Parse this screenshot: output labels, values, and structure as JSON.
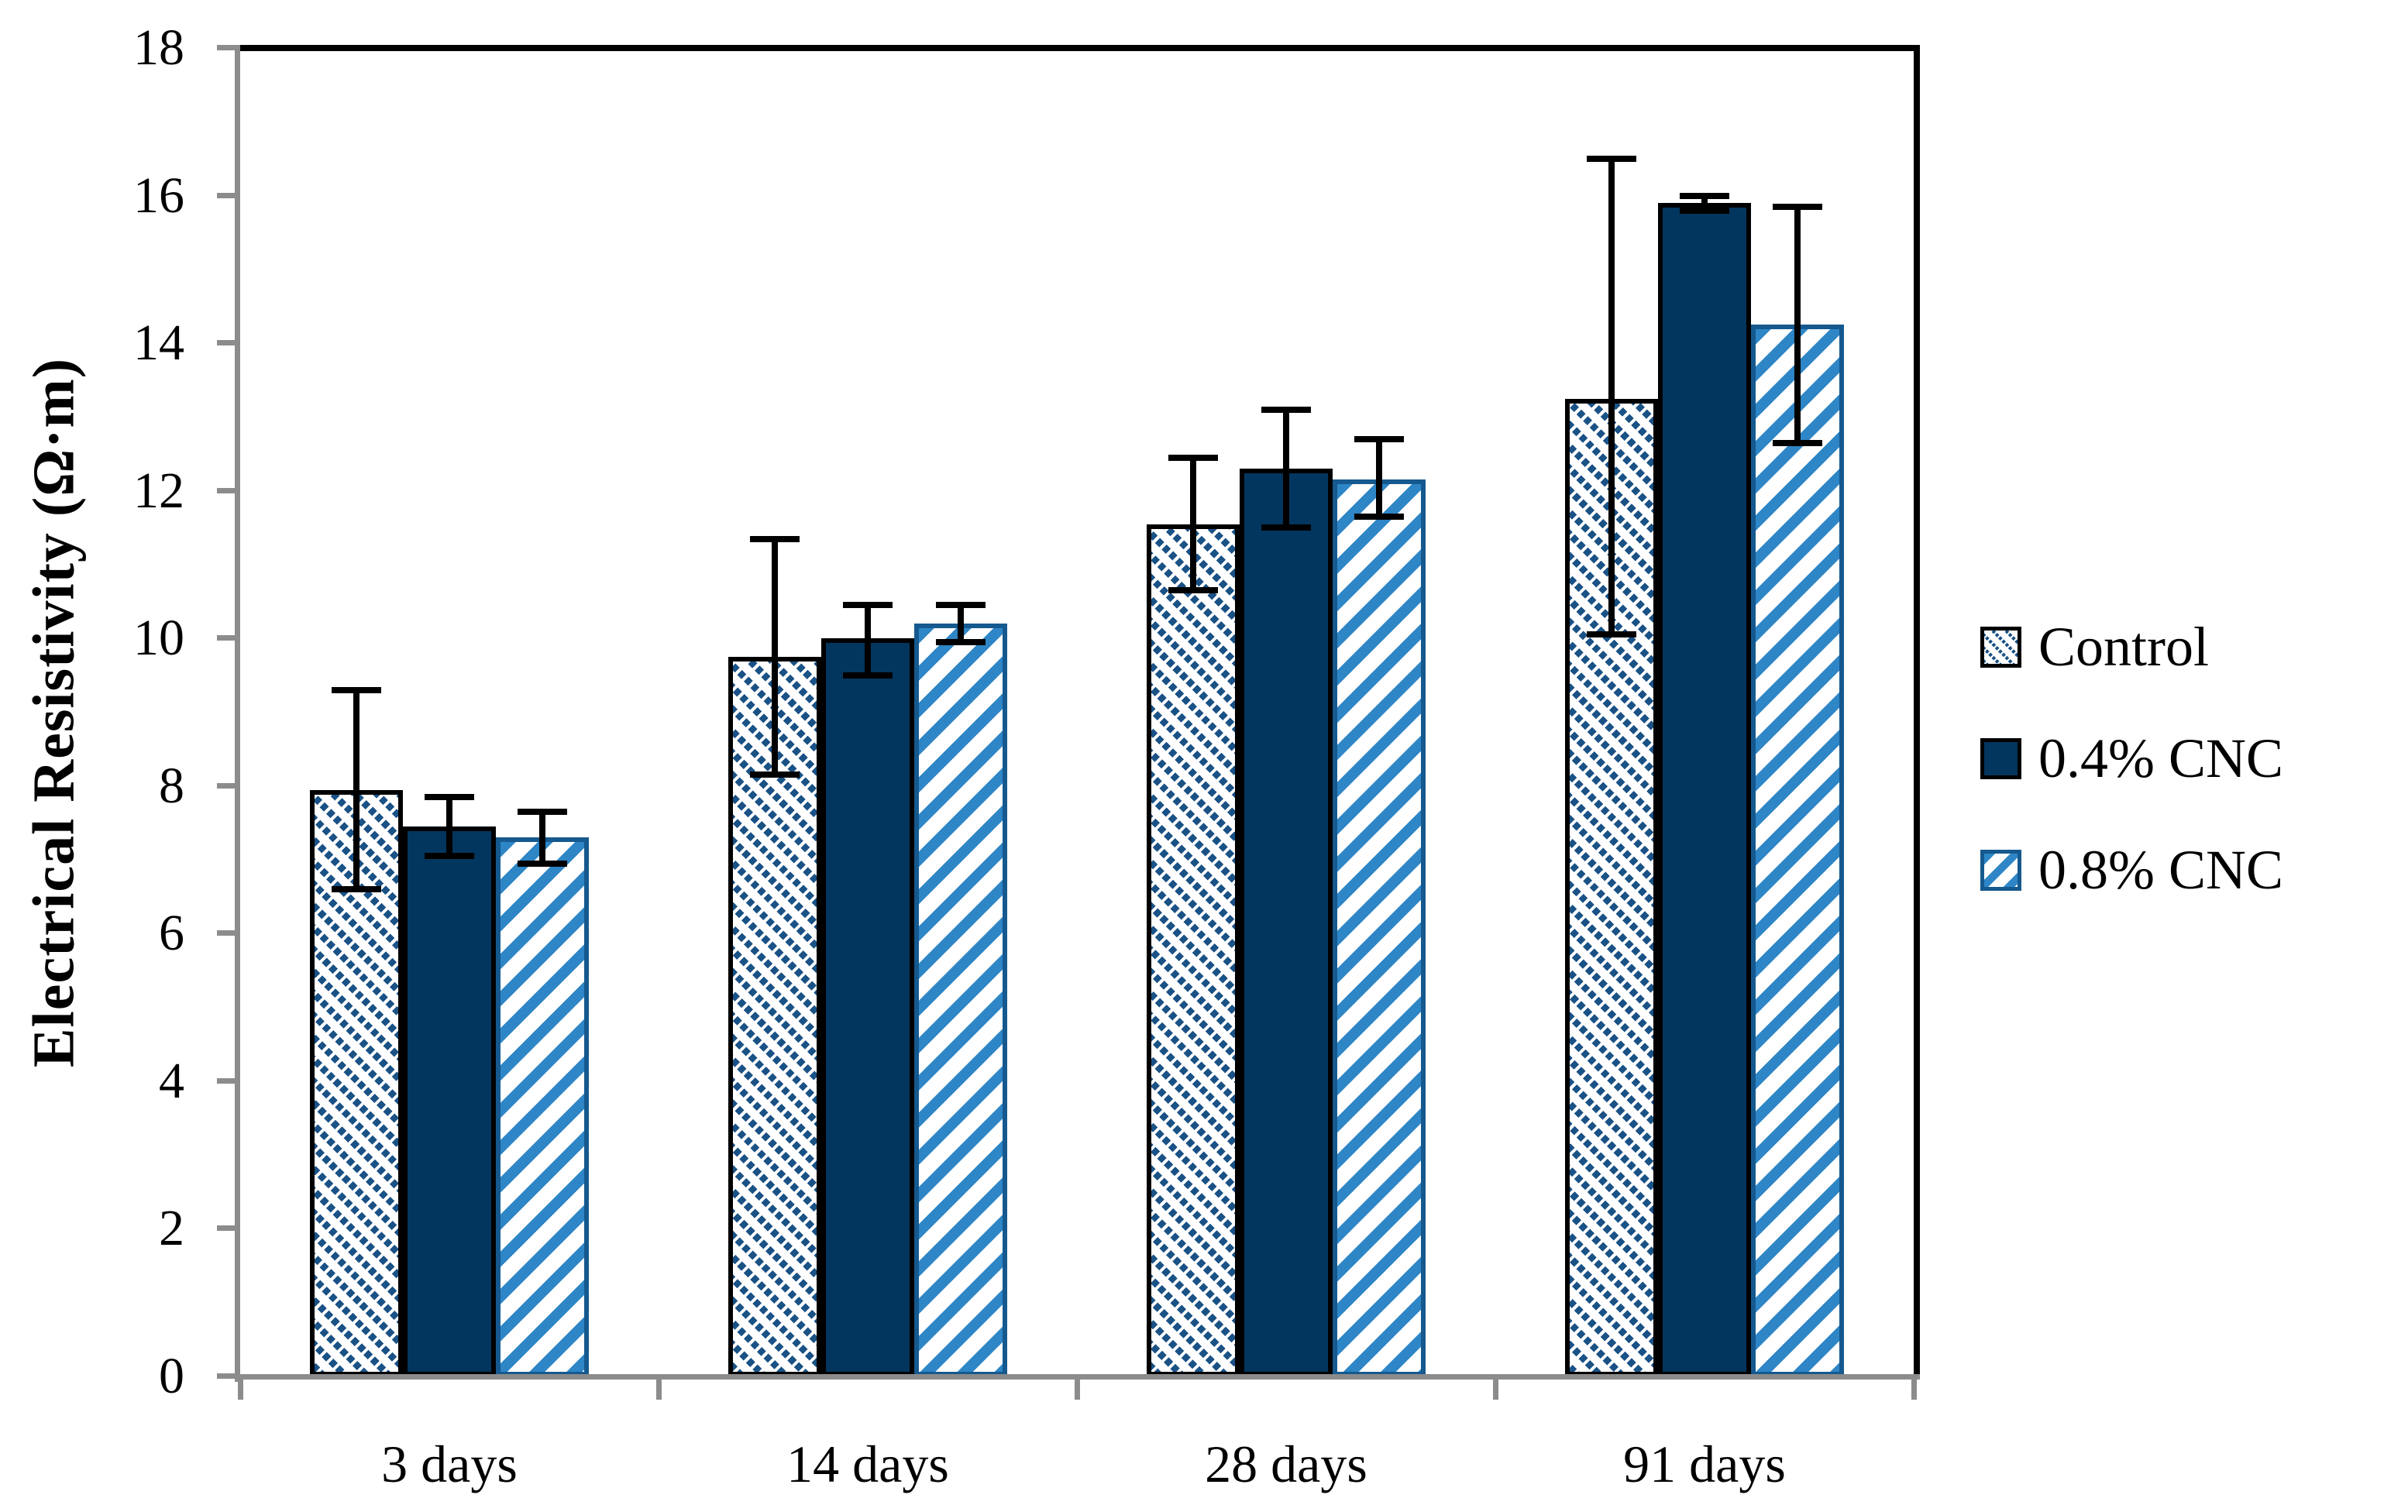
{
  "chart_data": {
    "type": "bar",
    "title": "",
    "xlabel": "",
    "ylabel": "Electrical Resistivity (Ω·m)",
    "categories": [
      "3 days",
      "14 days",
      "28 days",
      "91 days"
    ],
    "ylim": [
      0,
      18
    ],
    "ytick_step": 2,
    "ytick_labels": [
      "0",
      "2",
      "4",
      "6",
      "8",
      "10",
      "12",
      "14",
      "16",
      "18"
    ],
    "grid": false,
    "legend_position": "right",
    "error_bars": true,
    "series": [
      {
        "name": "Control",
        "pattern": "diagonal-dots-down",
        "fill": "#ffffff",
        "hatch_color": "#1a5286",
        "border_color": "#000000",
        "values": [
          7.95,
          9.75,
          11.55,
          13.25
        ],
        "err_low": [
          6.6,
          8.15,
          10.65,
          10.05
        ],
        "err_high": [
          9.3,
          11.35,
          12.45,
          16.5
        ]
      },
      {
        "name": "0.4% CNC",
        "pattern": "solid",
        "fill": "#03365e",
        "hatch_color": "#03365e",
        "border_color": "#000000",
        "values": [
          7.45,
          10.0,
          12.3,
          15.9
        ],
        "err_low": [
          7.05,
          9.5,
          11.5,
          15.8
        ],
        "err_high": [
          7.85,
          10.45,
          13.1,
          16.0
        ]
      },
      {
        "name": "0.8% CNC",
        "pattern": "diagonal-stripe-up",
        "fill": "#ffffff",
        "hatch_color": "#2e86c6",
        "border_color": "#15598f",
        "values": [
          7.3,
          10.2,
          12.15,
          14.25
        ],
        "err_low": [
          6.95,
          9.95,
          11.65,
          12.65
        ],
        "err_high": [
          7.65,
          10.45,
          12.7,
          15.85
        ]
      }
    ],
    "colors": {
      "axis": "#8c8c8c",
      "plot_border": "#000000",
      "error_bar": "#000000",
      "background": "#ffffff",
      "text": "#000000"
    }
  }
}
